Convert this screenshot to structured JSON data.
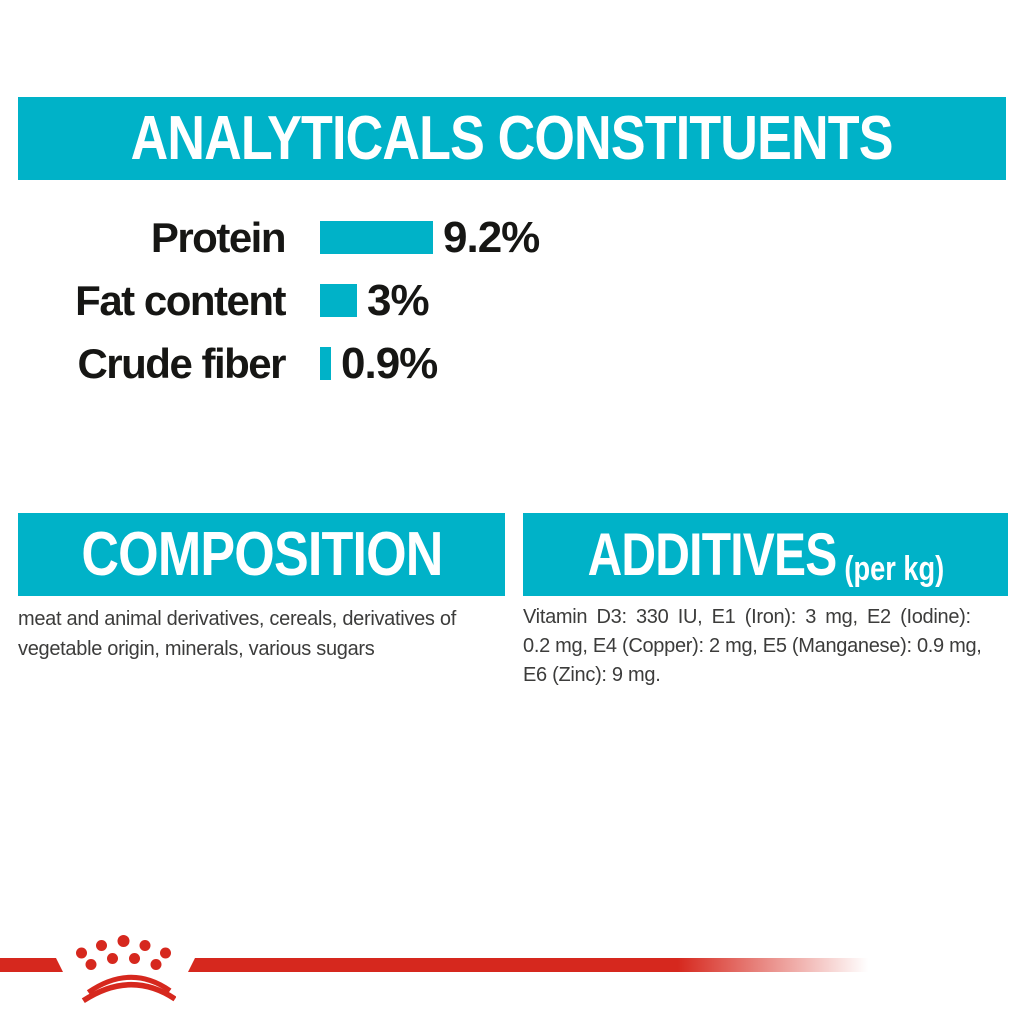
{
  "colors": {
    "teal": "#00b2c8",
    "red": "#d6281e",
    "heading_text": "#ffffff",
    "chart_text": "#161614",
    "body_text": "#3c3c3b"
  },
  "analyticals": {
    "title": "ANALYTICALS CONSTITUENTS"
  },
  "chart_data": {
    "type": "bar",
    "orientation": "horizontal",
    "title": "ANALYTICALS CONSTITUENTS",
    "categories": [
      "Protein",
      "Fat content",
      "Crude fiber"
    ],
    "values": [
      9.2,
      3,
      0.9
    ],
    "value_labels": [
      "9.2%",
      "3%",
      "0.9%"
    ],
    "unit": "%",
    "xlim": [
      0,
      9.2
    ],
    "grid": false,
    "legend": false,
    "bar_color": "#00b2c8"
  },
  "composition": {
    "title": "COMPOSITION",
    "text": "meat and animal derivatives, cereals, derivatives of vegetable origin, minerals, various sugars",
    "lines": [
      "meat and animal derivatives, cereals, derivatives of",
      "vegetable origin, minerals, various sugars"
    ]
  },
  "additives": {
    "title": "ADDITIVES",
    "title_suffix": "(per kg)",
    "text": "Vitamin D3: 330 IU, E1 (Iron): 3 mg, E2 (Iodine): 0.2 mg, E4 (Copper): 2 mg, E5 (Manganese): 0.9 mg, E6 (Zinc): 9 mg.",
    "lines": [
      "Vitamin D3: 330 IU, E1 (Iron): 3 mg, E2 (Iodine):",
      "0.2 mg, E4 (Copper): 2 mg, E5 (Manganese): 0.9 mg,",
      "E6 (Zinc): 9 mg."
    ]
  },
  "footer": {
    "logo": "royal-canin-crown-logo"
  }
}
